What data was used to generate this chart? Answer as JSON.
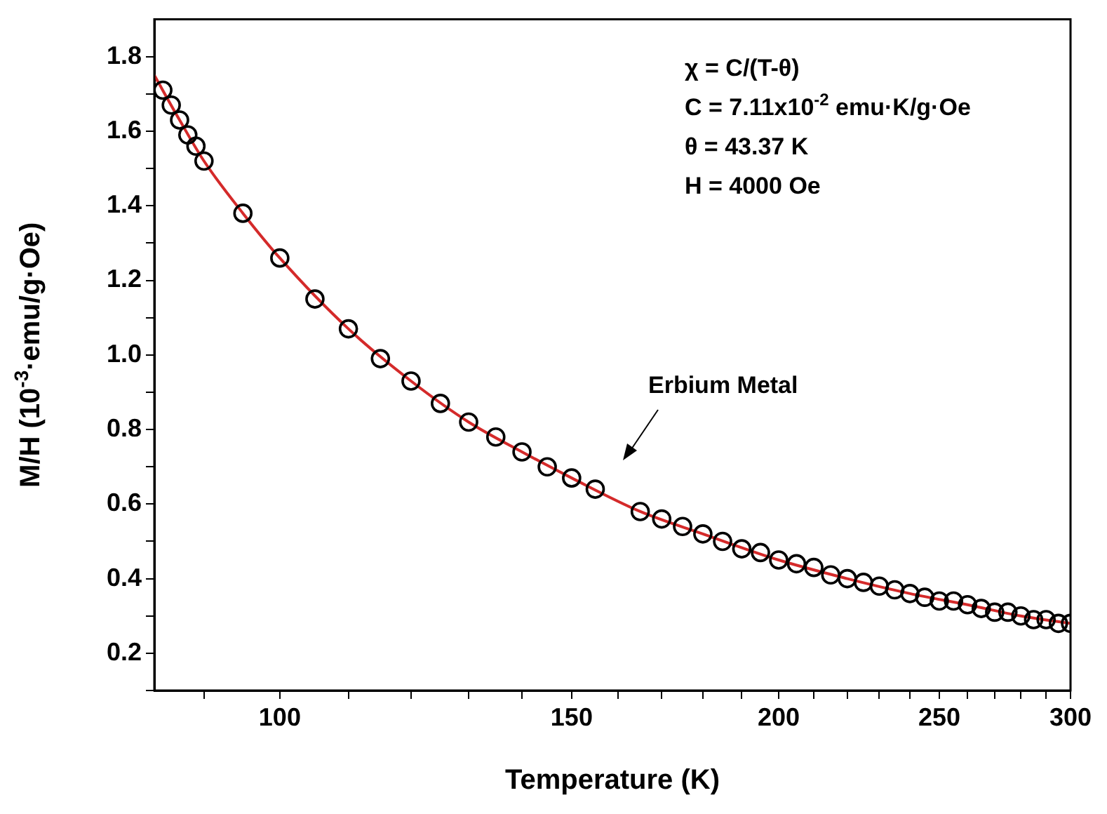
{
  "chart_data": {
    "type": "scatter",
    "xlabel": "Temperature (K)",
    "ylabel": "M/H (10$^{-3}$·emu/g·Oe)",
    "log": "x",
    "grid": false,
    "xlim": [
      84,
      300
    ],
    "ylim": [
      0.1,
      1.9
    ],
    "xticks": [
      {
        "value": 90,
        "label": null
      },
      100,
      {
        "value": 110,
        "label": null
      },
      {
        "value": 120,
        "label": null
      },
      {
        "value": 130,
        "label": null
      },
      {
        "value": 140,
        "label": null
      },
      150,
      {
        "value": 160,
        "label": null
      },
      {
        "value": 170,
        "label": null
      },
      {
        "value": 180,
        "label": null
      },
      {
        "value": 190,
        "label": null
      },
      200,
      {
        "value": 210,
        "label": null
      },
      {
        "value": 220,
        "label": null
      },
      {
        "value": 230,
        "label": null
      },
      {
        "value": 240,
        "label": null
      },
      250,
      {
        "value": 260,
        "label": null
      },
      {
        "value": 270,
        "label": null
      },
      {
        "value": 280,
        "label": null
      },
      {
        "value": 290,
        "label": null
      },
      300
    ],
    "yticks": [
      {
        "value": 0.1,
        "label": null
      },
      0.2,
      {
        "value": 0.3,
        "label": null
      },
      0.4,
      {
        "value": 0.5,
        "label": null
      },
      0.6,
      {
        "value": 0.7,
        "label": null
      },
      0.8,
      {
        "value": 0.9,
        "label": null
      },
      {
        "value": 1,
        "label": "1.0"
      },
      {
        "value": 1.1,
        "label": null
      },
      1.2,
      {
        "value": 1.3,
        "label": null
      },
      1.4,
      {
        "value": 1.5,
        "label": null
      },
      1.6,
      {
        "value": 1.7,
        "label": null
      },
      1.8
    ],
    "series": [
      {
        "type": "scatter",
        "marker": "circle",
        "color": "#000000",
        "x": [
          85,
          86,
          87,
          88,
          89,
          90,
          95,
          100,
          105,
          110,
          115,
          120,
          125,
          130,
          135,
          140,
          145,
          150,
          155,
          165,
          170,
          175,
          180,
          185,
          190,
          195,
          200,
          205,
          210,
          215,
          220,
          225,
          230,
          235,
          240,
          245,
          250,
          255,
          260,
          265,
          270,
          275,
          280,
          285,
          290,
          295,
          300
        ],
        "values": [
          1.71,
          1.67,
          1.63,
          1.59,
          1.56,
          1.52,
          1.38,
          1.26,
          1.15,
          1.07,
          0.99,
          0.93,
          0.87,
          0.82,
          0.78,
          0.74,
          0.7,
          0.67,
          0.64,
          0.58,
          0.56,
          0.54,
          0.52,
          0.5,
          0.48,
          0.47,
          0.45,
          0.44,
          0.43,
          0.41,
          0.4,
          0.39,
          0.38,
          0.37,
          0.36,
          0.35,
          0.34,
          0.34,
          0.33,
          0.32,
          0.31,
          0.31,
          0.3,
          0.29,
          0.29,
          0.28,
          0.28
        ]
      },
      {
        "type": "line",
        "marker": "none",
        "color": "#d42a2a",
        "x": [
          84,
          87,
          90,
          95,
          100,
          110,
          120,
          130,
          140,
          150,
          165,
          180,
          200,
          220,
          240,
          260,
          280,
          300
        ],
        "values": [
          1.75,
          1.63,
          1.52,
          1.38,
          1.26,
          1.07,
          0.93,
          0.82,
          0.74,
          0.67,
          0.58,
          0.52,
          0.45,
          0.4,
          0.36,
          0.33,
          0.3,
          0.28
        ]
      }
    ],
    "annotations": [
      "χ = C/(T-θ)",
      "C = 7.11x10$^{-2}$ emu·K/g·Oe",
      "θ = 43.37 K",
      "H = 4000 Oe",
      "Erbium Metal"
    ]
  }
}
